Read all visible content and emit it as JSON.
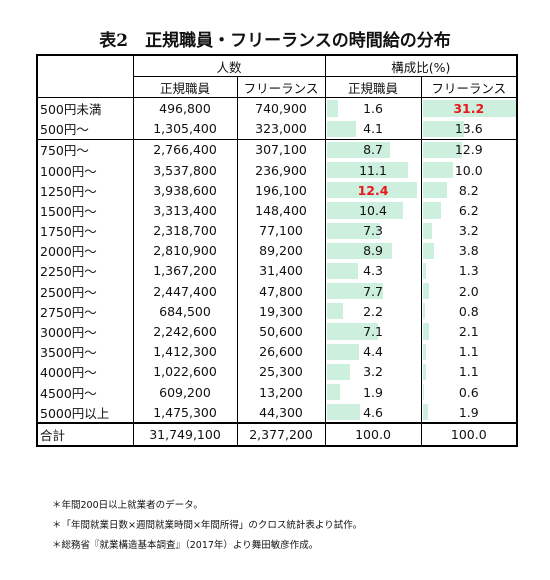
{
  "title": "表2　正規職員・フリーランスの時間給の分布",
  "headers": {
    "group_people": "人数",
    "group_ratio": "構成比(%)",
    "people_regular": "正規職員",
    "people_freelance": "フリーランス",
    "ratio_regular": "正規職員",
    "ratio_freelance": "フリーランス"
  },
  "rows": [
    {
      "label": "500円未満",
      "reg": "496,800",
      "free": "740,900",
      "reg_pct": "1.6",
      "free_pct": "31.2"
    },
    {
      "label": "500円～",
      "reg": "1,305,400",
      "free": "323,000",
      "reg_pct": "4.1",
      "free_pct": "13.6"
    },
    {
      "label": "750円～",
      "reg": "2,766,400",
      "free": "307,100",
      "reg_pct": "8.7",
      "free_pct": "12.9"
    },
    {
      "label": "1000円～",
      "reg": "3,537,800",
      "free": "236,900",
      "reg_pct": "11.1",
      "free_pct": "10.0"
    },
    {
      "label": "1250円～",
      "reg": "3,938,600",
      "free": "196,100",
      "reg_pct": "12.4",
      "free_pct": "8.2"
    },
    {
      "label": "1500円～",
      "reg": "3,313,400",
      "free": "148,400",
      "reg_pct": "10.4",
      "free_pct": "6.2"
    },
    {
      "label": "1750円～",
      "reg": "2,318,700",
      "free": "77,100",
      "reg_pct": "7.3",
      "free_pct": "3.2"
    },
    {
      "label": "2000円～",
      "reg": "2,810,900",
      "free": "89,200",
      "reg_pct": "8.9",
      "free_pct": "3.8"
    },
    {
      "label": "2250円～",
      "reg": "1,367,200",
      "free": "31,400",
      "reg_pct": "4.3",
      "free_pct": "1.3"
    },
    {
      "label": "2500円～",
      "reg": "2,447,400",
      "free": "47,800",
      "reg_pct": "7.7",
      "free_pct": "2.0"
    },
    {
      "label": "2750円～",
      "reg": "684,500",
      "free": "19,300",
      "reg_pct": "2.2",
      "free_pct": "0.8"
    },
    {
      "label": "3000円～",
      "reg": "2,242,600",
      "free": "50,600",
      "reg_pct": "7.1",
      "free_pct": "2.1"
    },
    {
      "label": "3500円～",
      "reg": "1,412,300",
      "free": "26,600",
      "reg_pct": "4.4",
      "free_pct": "1.1"
    },
    {
      "label": "4000円～",
      "reg": "1,022,600",
      "free": "25,300",
      "reg_pct": "3.2",
      "free_pct": "1.1"
    },
    {
      "label": "4500円～",
      "reg": "609,200",
      "free": "13,200",
      "reg_pct": "1.9",
      "free_pct": "0.6"
    },
    {
      "label": "5000円以上",
      "reg": "1,475,300",
      "free": "44,300",
      "reg_pct": "4.6",
      "free_pct": "1.9"
    }
  ],
  "total": {
    "label": "合計",
    "reg": "31,749,100",
    "free": "2,377,200",
    "reg_pct": "100.0",
    "free_pct": "100.0"
  },
  "highlight": {
    "reg_max_row": 4,
    "free_max_row": 0,
    "color": "#e8181c",
    "bar_color": "#ccf0dd"
  },
  "notes": [
    "＊年間200日以上就業者のデータ。",
    "＊「年間就業日数×週間就業時間×年間所得」のクロス統計表より試作。",
    "＊総務省『就業構造基本調査』（2017年）より舞田敏彦作成。"
  ]
}
